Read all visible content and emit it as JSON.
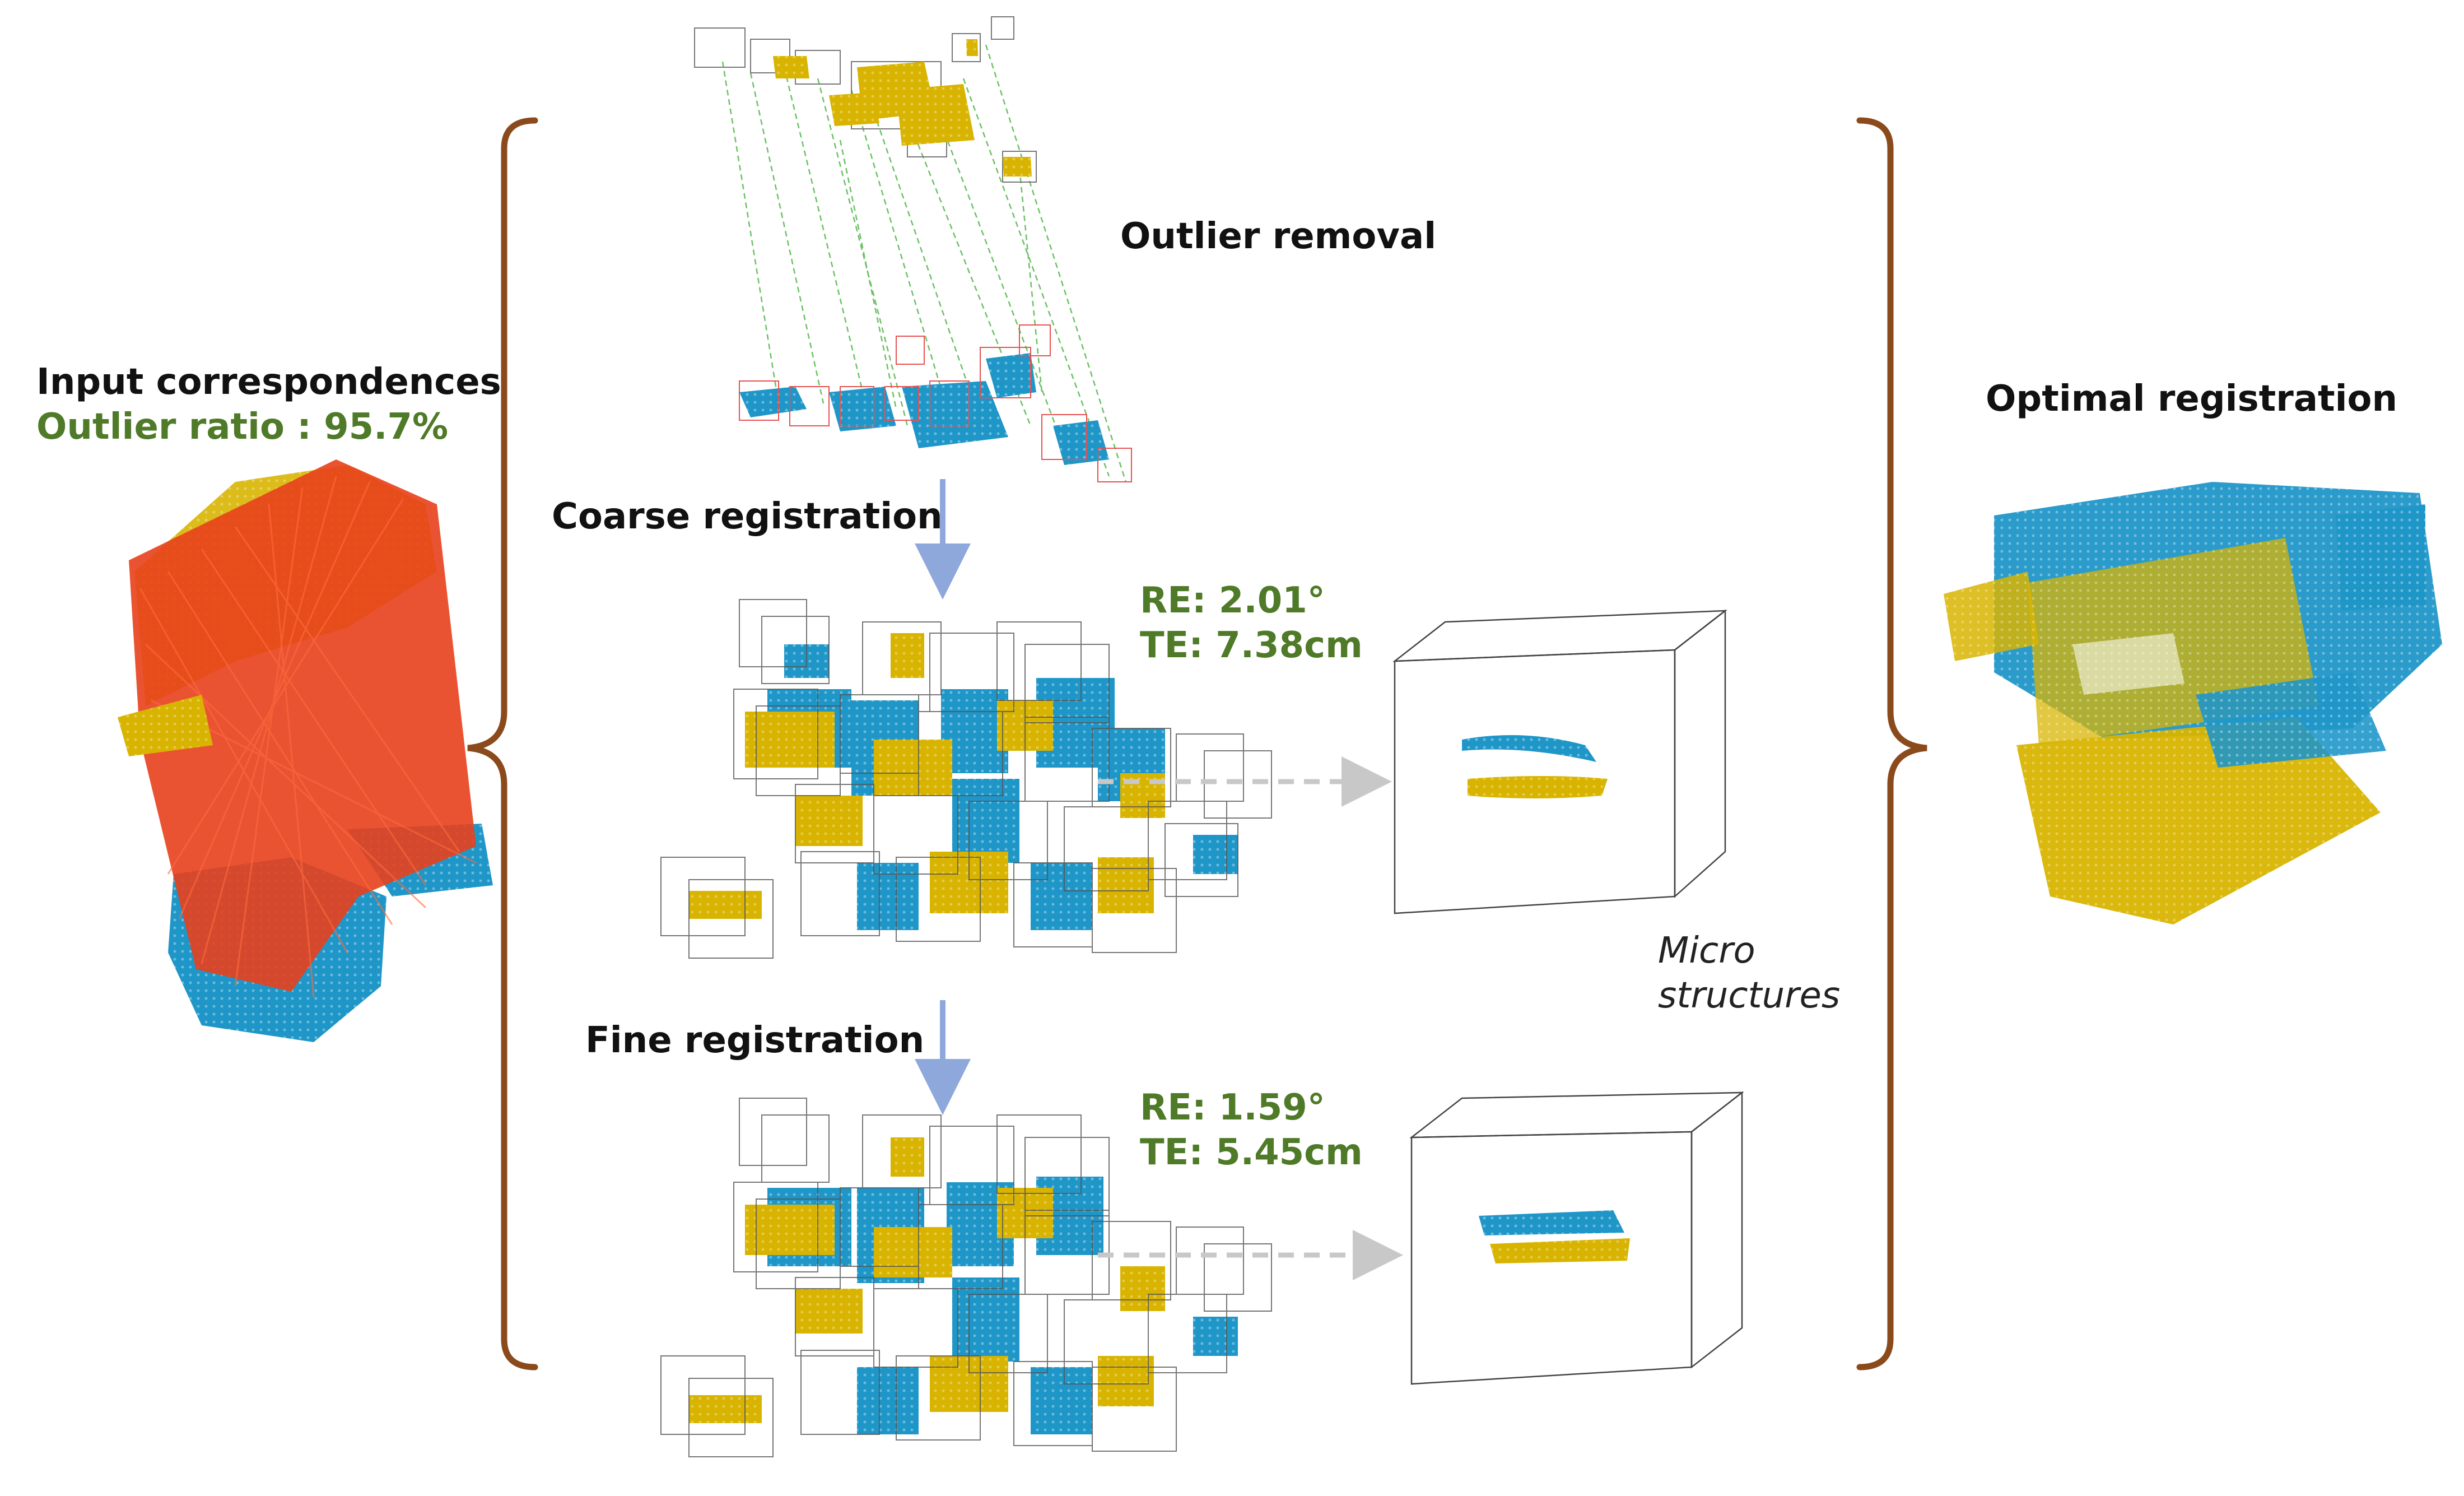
{
  "labels": {
    "input_title": "Input correspondences",
    "outlier_ratio": "Outlier ratio : 95.7%",
    "outlier_removal": "Outlier removal",
    "coarse_registration": "Coarse registration",
    "fine_registration": "Fine  registration",
    "optimal_registration": "Optimal registration",
    "micro": "Micro",
    "structures": "structures"
  },
  "coarse_metrics": {
    "re": "RE: 2.01°",
    "te": "TE: 7.38cm"
  },
  "fine_metrics": {
    "re": "RE: 1.59°",
    "te": "TE: 5.45cm"
  },
  "colors": {
    "source_cloud": "#1f96c8",
    "target_cloud": "#d8b400",
    "outlier_lines": "#e8401c",
    "inlier_lines": "#52b74a",
    "bracket": "#8b4a1c",
    "arrow": "#8fa8dc",
    "dashed_arrow": "#c8c8c8",
    "green_text": "#4f7a28",
    "box_red": "#e85050",
    "box_gray": "#555555"
  },
  "icons": [
    "input-correspondences-cloud",
    "outlier-removal-cloud",
    "coarse-registration-cloud",
    "fine-registration-cloud",
    "micro-structure-box",
    "optimal-registration-cloud"
  ]
}
